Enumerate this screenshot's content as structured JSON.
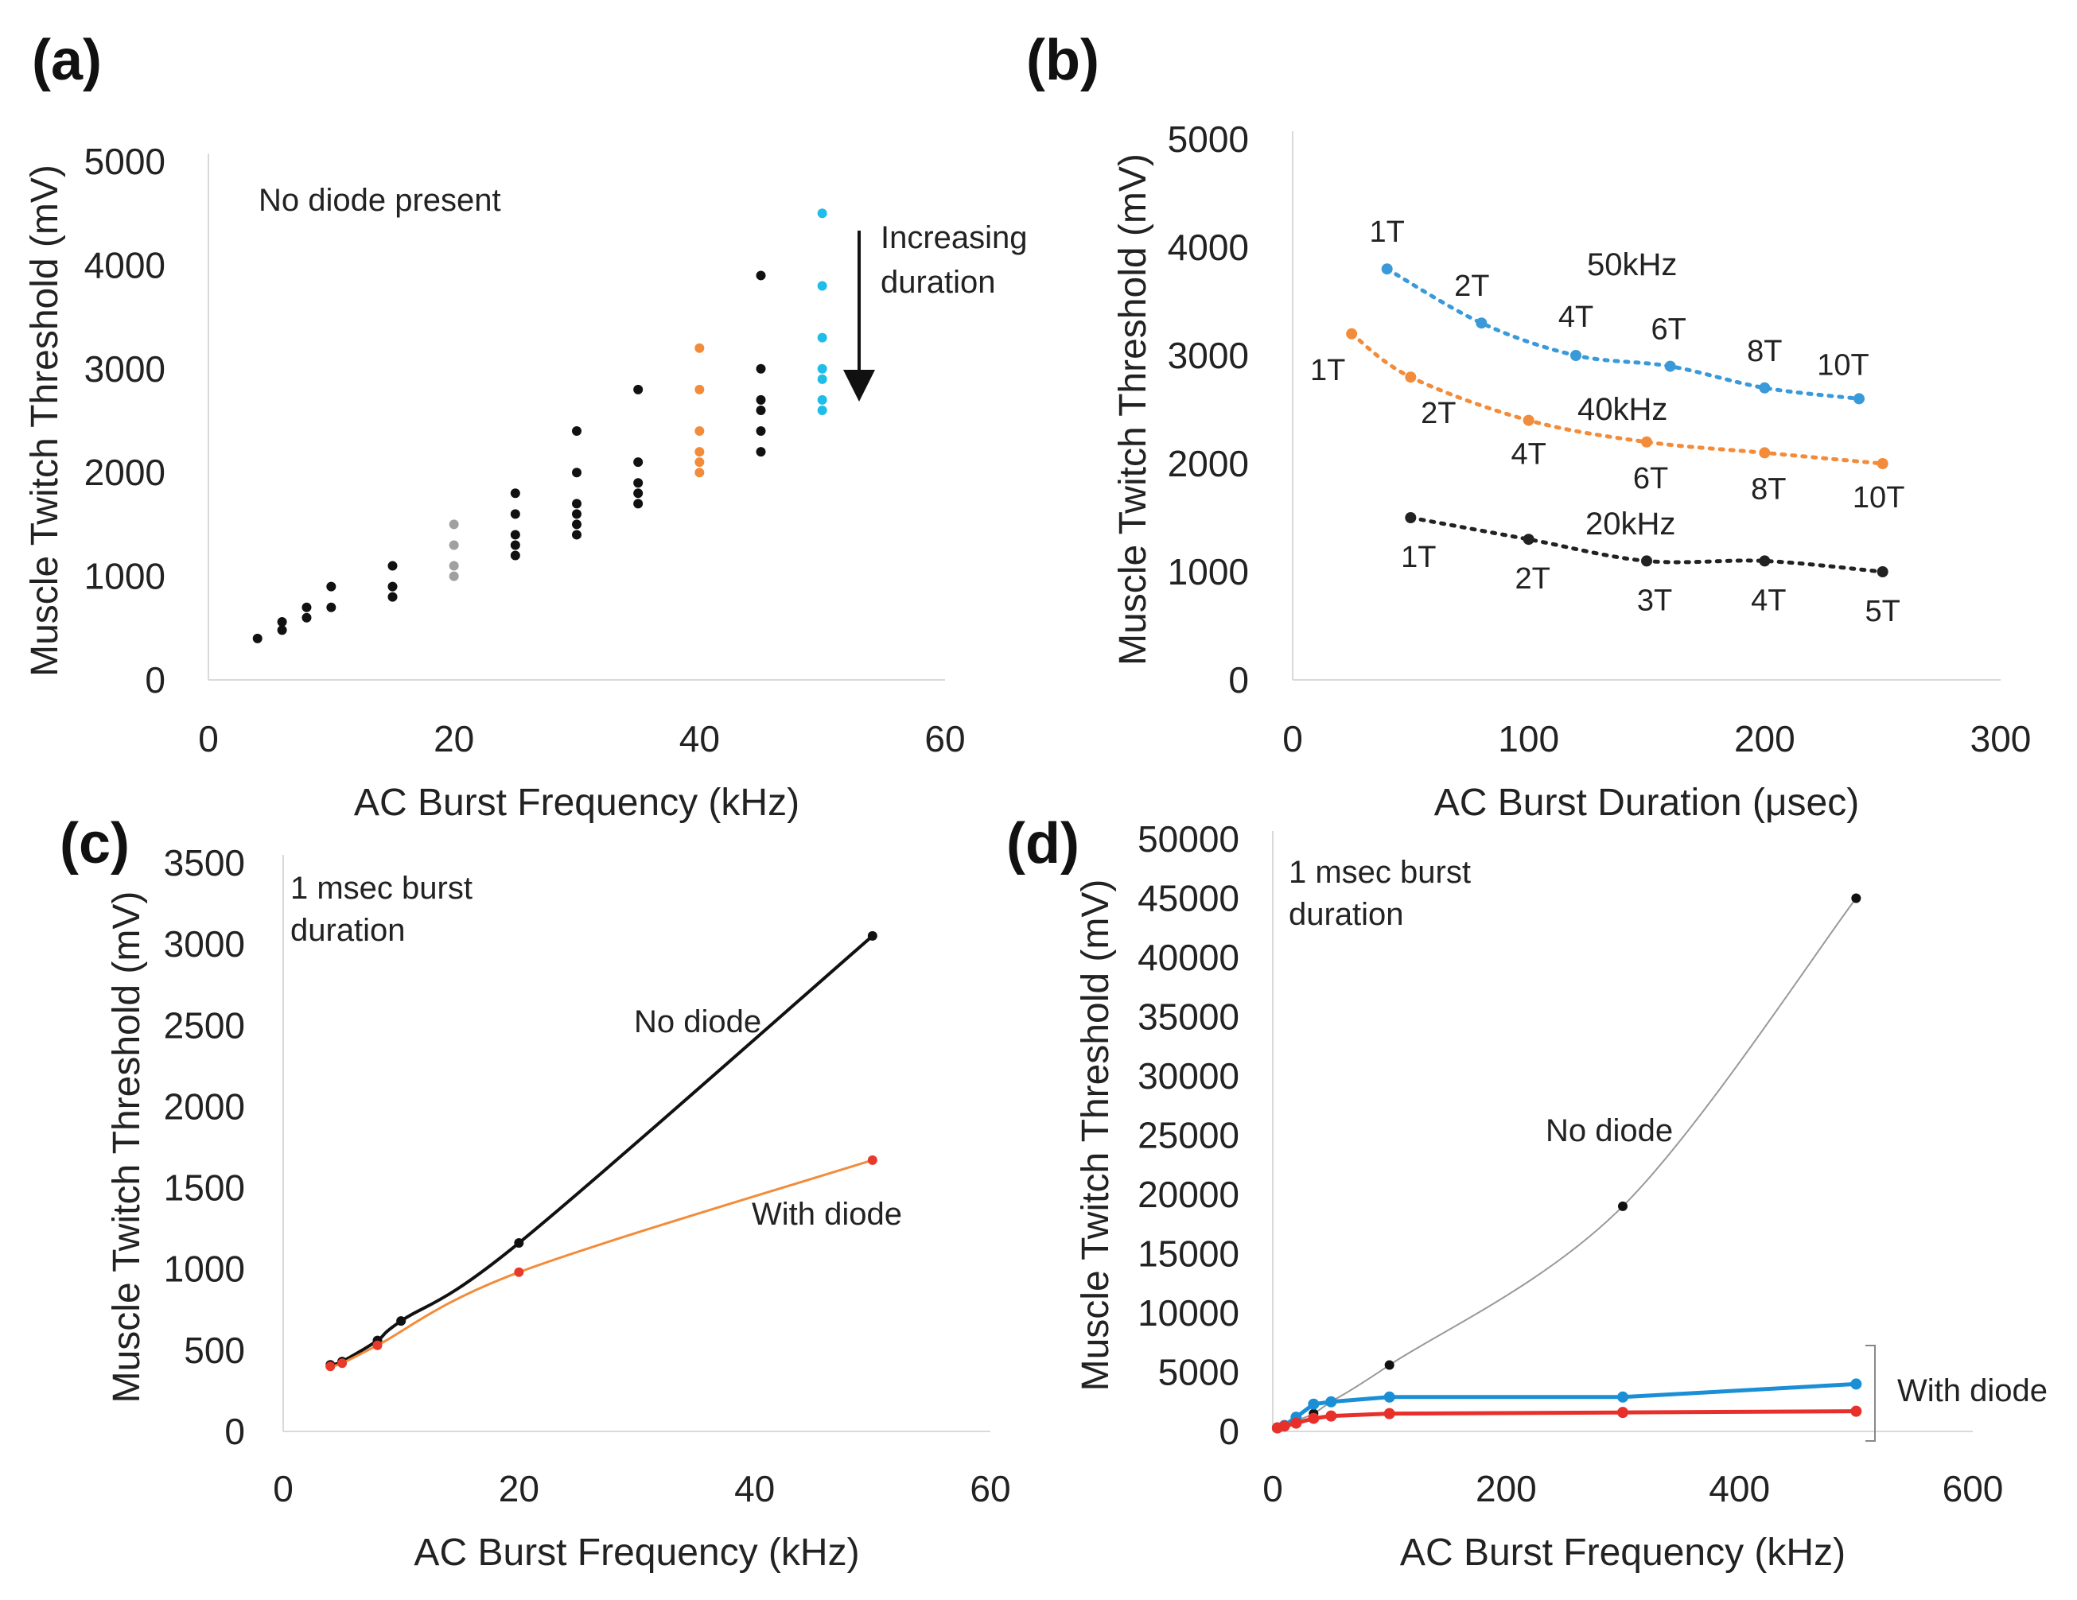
{
  "chart_data": [
    {
      "panel": "(a)",
      "type": "scatter",
      "xlabel": "AC Burst Frequency (kHz)",
      "ylabel": "Muscle Twitch Threshold (mV)",
      "xlim": [
        0,
        60
      ],
      "ylim": [
        0,
        5000
      ],
      "xticks": [
        0,
        20,
        40,
        60
      ],
      "yticks": [
        0,
        1000,
        2000,
        3000,
        4000,
        5000
      ],
      "annotations": [
        "No diode present",
        "Increasing",
        "duration"
      ],
      "series": [
        {
          "name": "black",
          "color": "#111111",
          "points": [
            [
              4,
              400
            ],
            [
              6,
              480
            ],
            [
              6,
              560
            ],
            [
              8,
              600
            ],
            [
              8,
              700
            ],
            [
              10,
              700
            ],
            [
              10,
              900
            ],
            [
              15,
              800
            ],
            [
              15,
              900
            ],
            [
              15,
              1100
            ],
            [
              25,
              1200
            ],
            [
              25,
              1300
            ],
            [
              25,
              1400
            ],
            [
              25,
              1600
            ],
            [
              25,
              1800
            ],
            [
              30,
              1400
            ],
            [
              30,
              1500
            ],
            [
              30,
              1600
            ],
            [
              30,
              1700
            ],
            [
              30,
              2000
            ],
            [
              30,
              2400
            ],
            [
              35,
              1700
            ],
            [
              35,
              1800
            ],
            [
              35,
              1900
            ],
            [
              35,
              2100
            ],
            [
              35,
              2800
            ],
            [
              45,
              2200
            ],
            [
              45,
              2400
            ],
            [
              45,
              2600
            ],
            [
              45,
              2700
            ],
            [
              45,
              3000
            ],
            [
              45,
              3900
            ]
          ]
        },
        {
          "name": "gray",
          "color": "#a0a0a0",
          "points": [
            [
              20,
              1000
            ],
            [
              20,
              1100
            ],
            [
              20,
              1300
            ],
            [
              20,
              1500
            ]
          ]
        },
        {
          "name": "orange",
          "color": "#f28c3a",
          "points": [
            [
              40,
              2000
            ],
            [
              40,
              2100
            ],
            [
              40,
              2200
            ],
            [
              40,
              2400
            ],
            [
              40,
              2800
            ],
            [
              40,
              3200
            ]
          ]
        },
        {
          "name": "cyan",
          "color": "#1fbde8",
          "points": [
            [
              50,
              2600
            ],
            [
              50,
              2700
            ],
            [
              50,
              2900
            ],
            [
              50,
              3000
            ],
            [
              50,
              3300
            ],
            [
              50,
              3800
            ],
            [
              50,
              4500
            ]
          ]
        }
      ]
    },
    {
      "panel": "(b)",
      "type": "scatter",
      "xlabel": "AC Burst Duration (μsec)",
      "ylabel": "Muscle Twitch Threshold (mV)",
      "xlim": [
        0,
        300
      ],
      "ylim": [
        0,
        5000
      ],
      "xticks": [
        0,
        100,
        200,
        300
      ],
      "yticks": [
        0,
        1000,
        2000,
        3000,
        4000,
        5000
      ],
      "series": [
        {
          "name": "50kHz",
          "color": "#3a9ad9",
          "points": [
            [
              40,
              3800
            ],
            [
              80,
              3300
            ],
            [
              120,
              3000
            ],
            [
              160,
              2900
            ],
            [
              200,
              2700
            ],
            [
              240,
              2600
            ]
          ],
          "labels": [
            "1T",
            "2T",
            "4T",
            "6T",
            "8T",
            "10T"
          ]
        },
        {
          "name": "40kHz",
          "color": "#f28c3a",
          "points": [
            [
              25,
              3200
            ],
            [
              50,
              2800
            ],
            [
              100,
              2400
            ],
            [
              150,
              2200
            ],
            [
              200,
              2100
            ],
            [
              250,
              2000
            ]
          ],
          "labels": [
            "1T",
            "2T",
            "4T",
            "6T",
            "8T",
            "10T"
          ]
        },
        {
          "name": "20kHz",
          "color": "#222222",
          "points": [
            [
              50,
              1500
            ],
            [
              100,
              1300
            ],
            [
              150,
              1100
            ],
            [
              200,
              1100
            ],
            [
              250,
              1000
            ]
          ],
          "labels": [
            "1T",
            "2T",
            "3T",
            "4T",
            "5T"
          ]
        }
      ]
    },
    {
      "panel": "(c)",
      "type": "line",
      "xlabel": "AC Burst Frequency (kHz)",
      "ylabel": "Muscle Twitch Threshold (mV)",
      "xlim": [
        0,
        60
      ],
      "ylim": [
        0,
        3500
      ],
      "xticks": [
        0,
        20,
        40,
        60
      ],
      "yticks": [
        0,
        500,
        1000,
        1500,
        2000,
        2500,
        3000,
        3500
      ],
      "annotations": [
        "1 msec burst",
        "duration"
      ],
      "series": [
        {
          "name": "No diode",
          "color": "#111111",
          "x": [
            4,
            5,
            8,
            10,
            20,
            50
          ],
          "values": [
            410,
            430,
            560,
            680,
            1160,
            3050
          ]
        },
        {
          "name": "With diode",
          "color": "#f28c3a",
          "marker_color": "#e83a2a",
          "x": [
            4,
            5,
            8,
            20,
            50
          ],
          "values": [
            400,
            420,
            530,
            980,
            1670
          ]
        }
      ]
    },
    {
      "panel": "(d)",
      "type": "line",
      "xlabel": "AC Burst Frequency (kHz)",
      "ylabel": "Muscle Twitch Threshold (mV)",
      "xlim": [
        0,
        600
      ],
      "ylim": [
        0,
        50000
      ],
      "xticks": [
        0,
        200,
        400,
        600
      ],
      "yticks": [
        0,
        5000,
        10000,
        15000,
        20000,
        25000,
        30000,
        35000,
        40000,
        45000,
        50000
      ],
      "annotations": [
        "1 msec burst",
        "duration"
      ],
      "series": [
        {
          "name": "No diode",
          "color": "#999999",
          "marker_color": "#111111",
          "x": [
            4,
            10,
            20,
            35,
            50,
            100,
            300,
            500
          ],
          "values": [
            300,
            500,
            900,
            1500,
            2500,
            5600,
            19000,
            45000
          ]
        },
        {
          "name": "With diode (blue)",
          "color": "#1a8fd6",
          "x": [
            4,
            10,
            20,
            35,
            50,
            100,
            300,
            500
          ],
          "values": [
            300,
            500,
            1200,
            2300,
            2500,
            2900,
            2900,
            4000
          ]
        },
        {
          "name": "With diode (red)",
          "color": "#e8302a",
          "x": [
            4,
            10,
            20,
            35,
            50,
            100,
            300,
            500
          ],
          "values": [
            300,
            450,
            700,
            1100,
            1300,
            1500,
            1600,
            1700
          ]
        }
      ],
      "bracket_label": "With diode"
    }
  ]
}
